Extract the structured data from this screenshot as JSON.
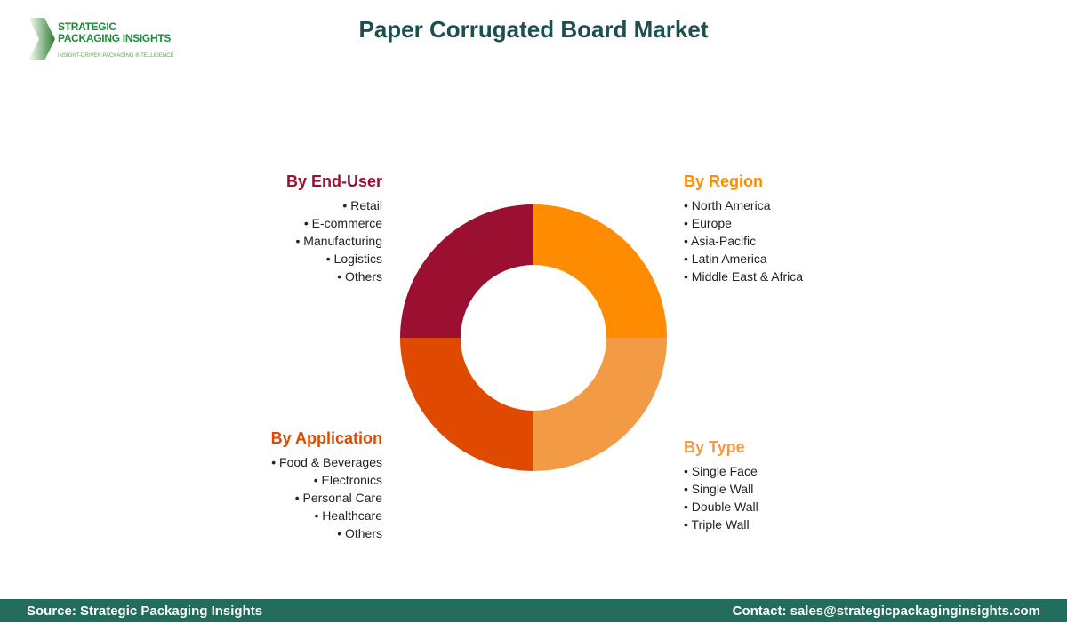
{
  "logo": {
    "line1": "STRATEGIC",
    "line2": "PACKAGING INSIGHTS",
    "tagline": "INSIGHT-DRIVEN PACKAGING INTELLIGENCE"
  },
  "title": "Paper Corrugated Board Market",
  "segments": {
    "region": {
      "title": "By Region",
      "color": "#FF8C00",
      "items": [
        "North America",
        "Europe",
        "Asia-Pacific",
        "Latin America",
        "Middle East & Africa"
      ]
    },
    "type": {
      "title": "By Type",
      "color": "#F39A45",
      "items": [
        "Single Face",
        "Single Wall",
        "Double Wall",
        "Triple Wall"
      ]
    },
    "application": {
      "title": "By Application",
      "color": "#E04A00",
      "items": [
        "Food & Beverages",
        "Electronics",
        "Personal Care",
        "Healthcare",
        "Others"
      ]
    },
    "end_user": {
      "title": "By End-User",
      "color": "#9B1030",
      "items": [
        "Retail",
        "E-commerce",
        "Manufacturing",
        "Logistics",
        "Others"
      ]
    }
  },
  "footer": {
    "source": "Source: Strategic Packaging Insights",
    "contact": "Contact: sales@strategicpackaginginsights.com"
  }
}
